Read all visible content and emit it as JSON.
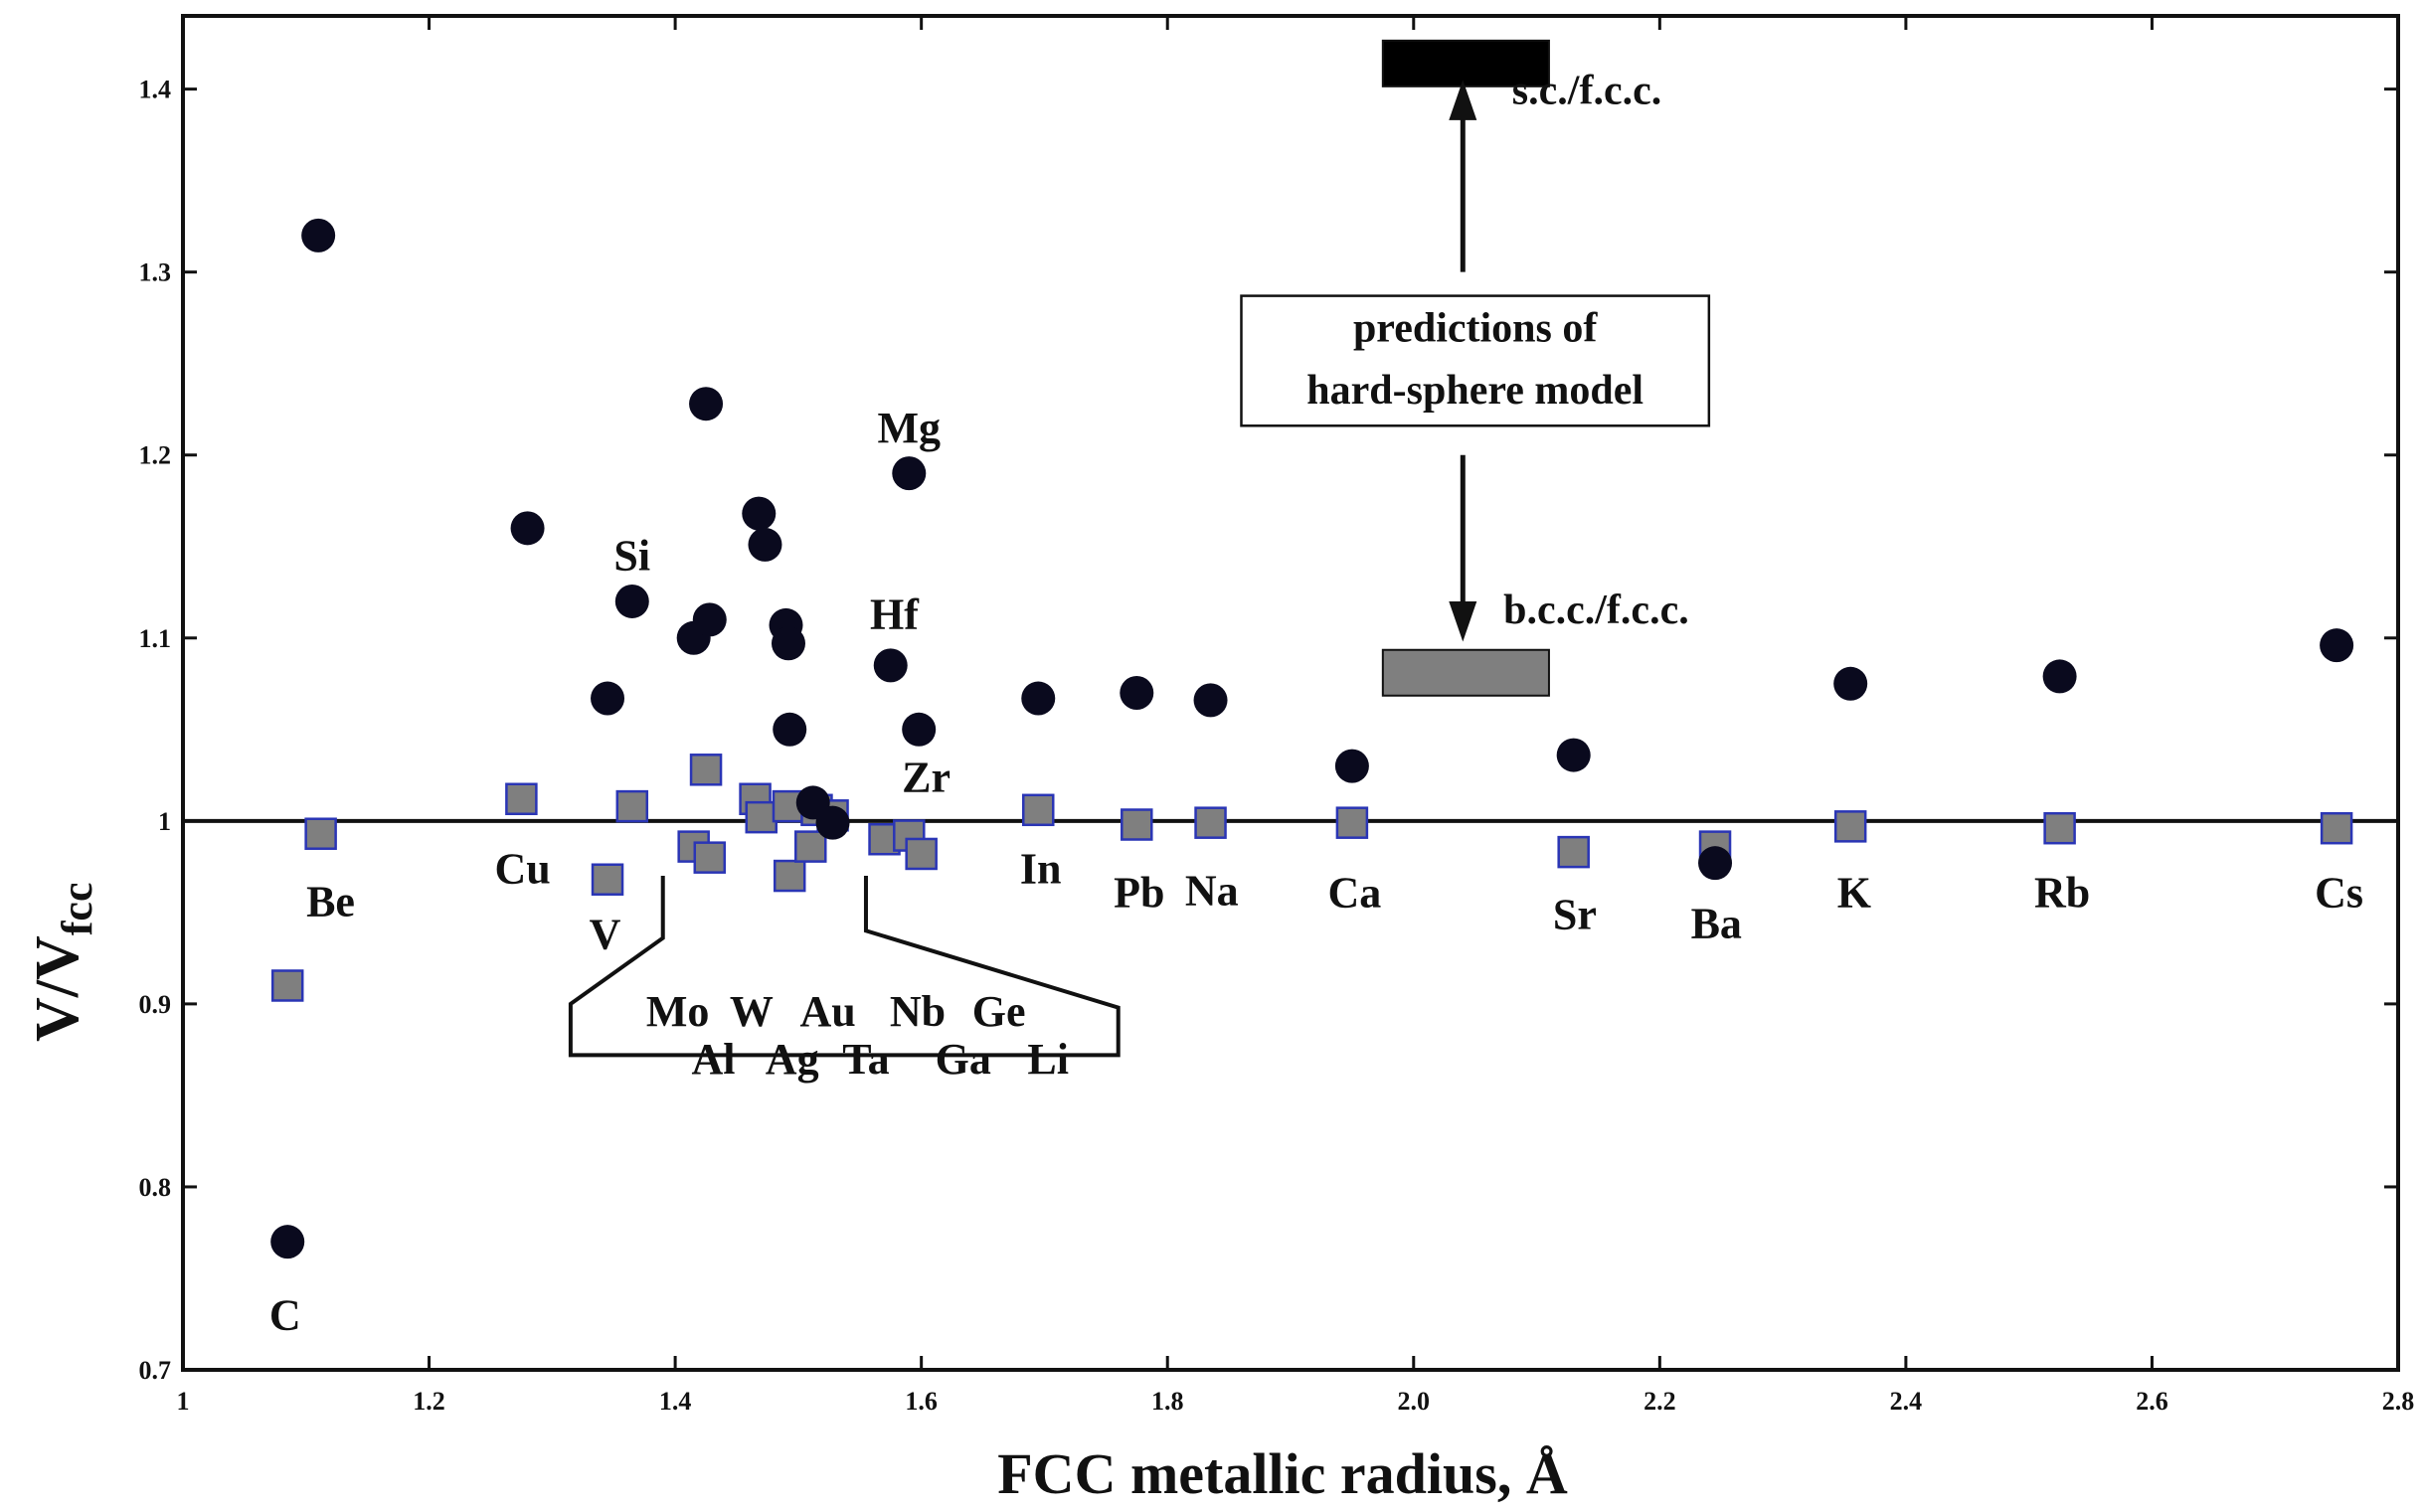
{
  "chart_data": {
    "type": "scatter",
    "xlabel": "FCC metallic radius, Å",
    "ylabel_main": "V/V",
    "ylabel_sub": "fcc",
    "xlim": [
      1.0,
      2.8
    ],
    "ylim": [
      0.7,
      1.44
    ],
    "x_ticks": [
      {
        "value": 1.0,
        "label": "1"
      },
      {
        "value": 1.2,
        "label": "1.2"
      },
      {
        "value": 1.4,
        "label": "1.4"
      },
      {
        "value": 1.6,
        "label": "1.6"
      },
      {
        "value": 1.8,
        "label": "1.8"
      },
      {
        "value": 2.0,
        "label": "2.0"
      },
      {
        "value": 2.2,
        "label": "2.2"
      },
      {
        "value": 2.4,
        "label": "2.4"
      },
      {
        "value": 2.6,
        "label": "2.6"
      },
      {
        "value": 2.8,
        "label": "2.8"
      }
    ],
    "y_ticks": [
      {
        "value": 0.7,
        "label": "0.7"
      },
      {
        "value": 0.8,
        "label": "0.8"
      },
      {
        "value": 0.9,
        "label": "0.9"
      },
      {
        "value": 1.0,
        "label": "1"
      },
      {
        "value": 1.1,
        "label": "1.1"
      },
      {
        "value": 1.2,
        "label": "1.2"
      },
      {
        "value": 1.3,
        "label": "1.3"
      },
      {
        "value": 1.4,
        "label": "1.4"
      }
    ],
    "reference_line": 1.0,
    "series": [
      {
        "marker": "circle",
        "color": "#0a0a1e",
        "points": [
          {
            "x": 1.11,
            "y": 1.32
          },
          {
            "x": 1.085,
            "y": 0.77
          },
          {
            "x": 1.28,
            "y": 1.16
          },
          {
            "x": 1.345,
            "y": 1.067
          },
          {
            "x": 1.365,
            "y": 1.12
          },
          {
            "x": 1.415,
            "y": 1.1
          },
          {
            "x": 1.425,
            "y": 1.228
          },
          {
            "x": 1.428,
            "y": 1.11
          },
          {
            "x": 1.468,
            "y": 1.168
          },
          {
            "x": 1.473,
            "y": 1.151
          },
          {
            "x": 1.49,
            "y": 1.107
          },
          {
            "x": 1.492,
            "y": 1.097
          },
          {
            "x": 1.493,
            "y": 1.05
          },
          {
            "x": 1.512,
            "y": 1.01
          },
          {
            "x": 1.528,
            "y": 0.999
          },
          {
            "x": 1.575,
            "y": 1.085
          },
          {
            "x": 1.59,
            "y": 1.19
          },
          {
            "x": 1.598,
            "y": 1.05
          },
          {
            "x": 1.695,
            "y": 1.067
          },
          {
            "x": 1.775,
            "y": 1.07
          },
          {
            "x": 1.835,
            "y": 1.066
          },
          {
            "x": 1.95,
            "y": 1.03
          },
          {
            "x": 2.13,
            "y": 1.036
          },
          {
            "x": 2.245,
            "y": 0.977
          },
          {
            "x": 2.355,
            "y": 1.075
          },
          {
            "x": 2.525,
            "y": 1.079
          },
          {
            "x": 2.75,
            "y": 1.096
          }
        ]
      },
      {
        "marker": "square",
        "color": "#7f7f7f",
        "edge": "#2a35b5",
        "points": [
          {
            "x": 1.085,
            "y": 0.91
          },
          {
            "x": 1.112,
            "y": 0.993
          },
          {
            "x": 1.275,
            "y": 1.012
          },
          {
            "x": 1.345,
            "y": 0.968
          },
          {
            "x": 1.365,
            "y": 1.008
          },
          {
            "x": 1.415,
            "y": 0.986
          },
          {
            "x": 1.425,
            "y": 1.028
          },
          {
            "x": 1.428,
            "y": 0.98
          },
          {
            "x": 1.465,
            "y": 1.012
          },
          {
            "x": 1.47,
            "y": 1.002
          },
          {
            "x": 1.492,
            "y": 1.008
          },
          {
            "x": 1.493,
            "y": 0.97
          },
          {
            "x": 1.51,
            "y": 0.986
          },
          {
            "x": 1.515,
            "y": 1.006
          },
          {
            "x": 1.528,
            "y": 1.003
          },
          {
            "x": 1.57,
            "y": 0.99
          },
          {
            "x": 1.59,
            "y": 0.992
          },
          {
            "x": 1.6,
            "y": 0.982
          },
          {
            "x": 1.695,
            "y": 1.006
          },
          {
            "x": 1.775,
            "y": 0.998
          },
          {
            "x": 1.835,
            "y": 0.999
          },
          {
            "x": 1.95,
            "y": 0.999
          },
          {
            "x": 2.13,
            "y": 0.983
          },
          {
            "x": 2.245,
            "y": 0.986
          },
          {
            "x": 2.355,
            "y": 0.997
          },
          {
            "x": 2.525,
            "y": 0.996
          },
          {
            "x": 2.75,
            "y": 0.996
          }
        ]
      }
    ],
    "point_labels": [
      {
        "text": "Be",
        "x": 1.12,
        "y": 0.948
      },
      {
        "text": "C",
        "x": 1.083,
        "y": 0.722
      },
      {
        "text": "Cu",
        "x": 1.276,
        "y": 0.966
      },
      {
        "text": "V",
        "x": 1.343,
        "y": 0.93
      },
      {
        "text": "Si",
        "x": 1.365,
        "y": 1.137
      },
      {
        "text": "Mg",
        "x": 1.59,
        "y": 1.207
      },
      {
        "text": "Hf",
        "x": 1.578,
        "y": 1.105
      },
      {
        "text": "Zr",
        "x": 1.604,
        "y": 1.016
      },
      {
        "text": "In",
        "x": 1.697,
        "y": 0.966
      },
      {
        "text": "Pb",
        "x": 1.777,
        "y": 0.953
      },
      {
        "text": "Na",
        "x": 1.836,
        "y": 0.954
      },
      {
        "text": "Ca",
        "x": 1.952,
        "y": 0.953
      },
      {
        "text": "Sr",
        "x": 2.131,
        "y": 0.941
      },
      {
        "text": "Ba",
        "x": 2.246,
        "y": 0.936
      },
      {
        "text": "K",
        "x": 2.358,
        "y": 0.953
      },
      {
        "text": "Rb",
        "x": 2.527,
        "y": 0.953
      },
      {
        "text": "Cs",
        "x": 2.752,
        "y": 0.953
      }
    ],
    "callout_labels": [
      {
        "text": "Mo",
        "x": 1.402,
        "y": 0.888
      },
      {
        "text": "W",
        "x": 1.462,
        "y": 0.888
      },
      {
        "text": "Au",
        "x": 1.524,
        "y": 0.888
      },
      {
        "text": "Nb",
        "x": 1.597,
        "y": 0.888
      },
      {
        "text": "Ge",
        "x": 1.663,
        "y": 0.888
      },
      {
        "text": "Al",
        "x": 1.431,
        "y": 0.862
      },
      {
        "text": "Ag",
        "x": 1.495,
        "y": 0.862
      },
      {
        "text": "Ta",
        "x": 1.555,
        "y": 0.862
      },
      {
        "text": "Ga",
        "x": 1.634,
        "y": 0.862
      },
      {
        "text": "Li",
        "x": 1.703,
        "y": 0.862
      }
    ],
    "reference_bars": [
      {
        "label": "s.c./f.c.c.",
        "y": 1.414,
        "x0": 1.975,
        "x1": 2.11,
        "color": "#000000"
      },
      {
        "label": "b.c.c./f.c.c.",
        "y": 1.081,
        "x0": 1.975,
        "x1": 2.11,
        "color": "#7f7f7f"
      }
    ],
    "annotation": {
      "line1": "predictions of",
      "line2": "hard-sphere model"
    }
  }
}
